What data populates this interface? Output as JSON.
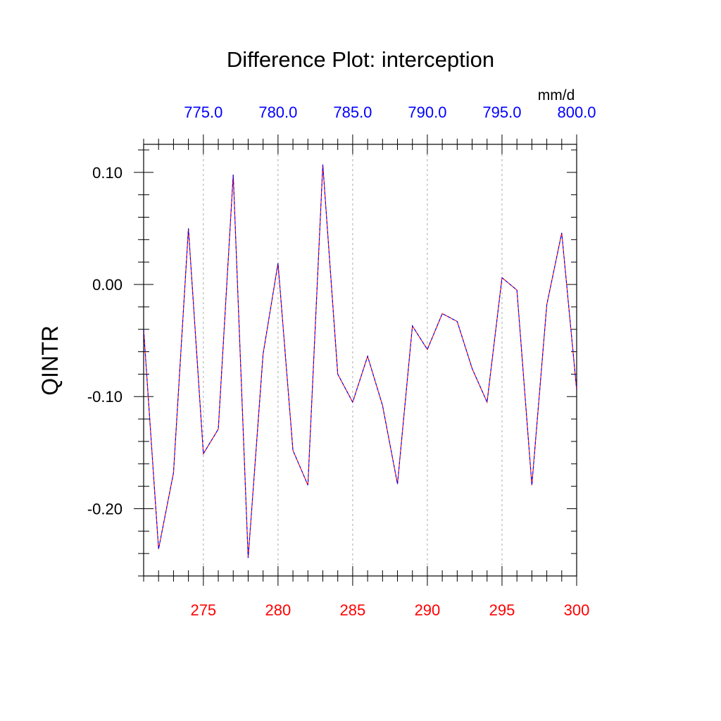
{
  "chart_data": {
    "type": "line",
    "title": "Difference Plot: interception",
    "units": "mm/d",
    "ylabel": "QINTR",
    "grid": "vertical dashed at major x ticks",
    "bottom_axis": {
      "color": "#ff0000",
      "range": [
        271,
        300
      ],
      "tick_labels": [
        "275",
        "280",
        "285",
        "290",
        "295",
        "300"
      ]
    },
    "top_axis": {
      "color": "#0000ff",
      "range": [
        771,
        800
      ],
      "tick_labels": [
        "775.0",
        "780.0",
        "785.0",
        "790.0",
        "795.0",
        "800.0"
      ]
    },
    "y_axis": {
      "range": [
        -0.26,
        0.125
      ],
      "tick_labels": [
        "0.10",
        "0.00",
        "-0.10",
        "-0.20"
      ]
    },
    "series": [
      {
        "color": "#ff0000",
        "style": "solid",
        "x": [
          271,
          272,
          273,
          274,
          275,
          276,
          277,
          278,
          279,
          280,
          281,
          282,
          283,
          284,
          285,
          286,
          287,
          288,
          289,
          290,
          291,
          292,
          293,
          294,
          295,
          296,
          297,
          298,
          299,
          300
        ],
        "values": [
          -0.04,
          -0.236,
          -0.168,
          0.05,
          -0.151,
          -0.129,
          0.098,
          -0.244,
          -0.062,
          0.019,
          -0.148,
          -0.179,
          0.107,
          -0.08,
          -0.105,
          -0.064,
          -0.108,
          -0.178,
          -0.037,
          -0.058,
          -0.026,
          -0.033,
          -0.075,
          -0.105,
          0.006,
          -0.005,
          -0.179,
          -0.018,
          0.046,
          -0.094
        ]
      },
      {
        "color": "#0000ff",
        "style": "dashed",
        "x": [
          771,
          772,
          773,
          774,
          775,
          776,
          777,
          778,
          779,
          780,
          781,
          782,
          783,
          784,
          785,
          786,
          787,
          788,
          789,
          790,
          791,
          792,
          793,
          794,
          795,
          796,
          797,
          798,
          799,
          800
        ],
        "values": [
          -0.04,
          -0.236,
          -0.168,
          0.05,
          -0.151,
          -0.129,
          0.098,
          -0.244,
          -0.062,
          0.019,
          -0.148,
          -0.179,
          0.107,
          -0.08,
          -0.105,
          -0.064,
          -0.108,
          -0.178,
          -0.037,
          -0.058,
          -0.026,
          -0.033,
          -0.075,
          -0.105,
          0.006,
          -0.005,
          -0.179,
          -0.018,
          0.046,
          -0.094
        ]
      }
    ]
  }
}
